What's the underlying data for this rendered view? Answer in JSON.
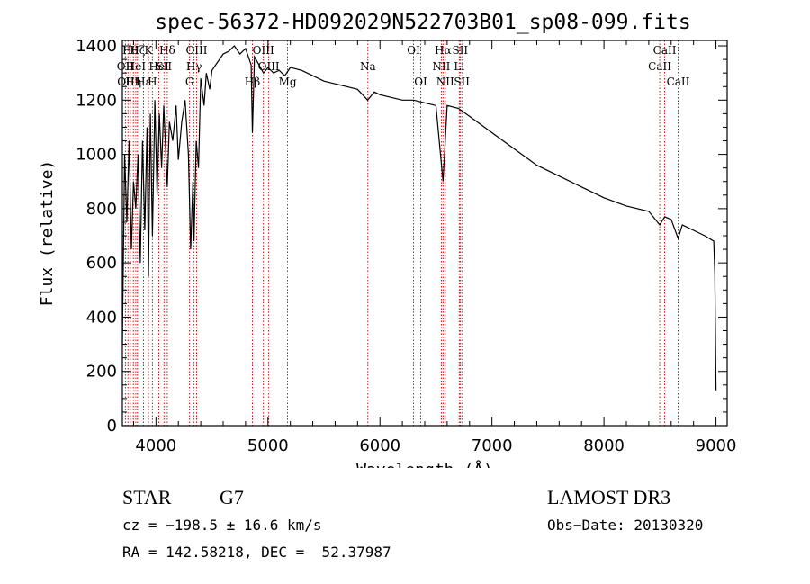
{
  "chart_data": {
    "type": "line",
    "title": "spec-56372-HD092029N522703B01_sp08-099.fits",
    "xlabel": "Wavelength (Å)",
    "ylabel": "Flux (relative)",
    "xlim": [
      3700,
      9100
    ],
    "ylim": [
      0,
      1420
    ],
    "xticks": [
      4000,
      5000,
      6000,
      7000,
      8000,
      9000
    ],
    "yticks": [
      0,
      200,
      400,
      600,
      800,
      1000,
      1200,
      1400
    ],
    "series": [
      {
        "name": "flux",
        "x": [
          3700,
          3720,
          3740,
          3760,
          3780,
          3800,
          3820,
          3840,
          3860,
          3880,
          3900,
          3920,
          3933,
          3950,
          3968,
          3990,
          4010,
          4030,
          4050,
          4070,
          4101,
          4120,
          4150,
          4180,
          4200,
          4230,
          4260,
          4290,
          4310,
          4330,
          4340,
          4360,
          4380,
          4400,
          4430,
          4450,
          4480,
          4500,
          4550,
          4600,
          4650,
          4700,
          4750,
          4800,
          4850,
          4861,
          4880,
          4920,
          4960,
          5000,
          5050,
          5100,
          5150,
          5200,
          5300,
          5400,
          5500,
          5600,
          5700,
          5800,
          5890,
          5950,
          6000,
          6100,
          6200,
          6300,
          6400,
          6500,
          6563,
          6600,
          6700,
          6800,
          6900,
          7000,
          7200,
          7400,
          7600,
          7800,
          8000,
          8200,
          8400,
          8498,
          8542,
          8600,
          8662,
          8700,
          8800,
          8900,
          8980,
          8990,
          9000
        ],
        "y": [
          300,
          1000,
          750,
          1050,
          650,
          900,
          800,
          1000,
          600,
          1050,
          720,
          1100,
          550,
          1150,
          700,
          1200,
          850,
          1150,
          950,
          1180,
          880,
          1120,
          1050,
          1180,
          980,
          1120,
          1200,
          1000,
          650,
          900,
          680,
          1050,
          950,
          1280,
          1180,
          1300,
          1240,
          1310,
          1340,
          1370,
          1380,
          1400,
          1370,
          1390,
          1330,
          1080,
          1360,
          1330,
          1300,
          1320,
          1300,
          1310,
          1290,
          1320,
          1310,
          1290,
          1270,
          1260,
          1250,
          1240,
          1200,
          1230,
          1220,
          1210,
          1200,
          1200,
          1190,
          1180,
          900,
          1180,
          1170,
          1140,
          1110,
          1080,
          1020,
          960,
          920,
          880,
          840,
          810,
          790,
          740,
          770,
          760,
          690,
          740,
          720,
          700,
          680,
          560,
          130
        ]
      }
    ],
    "lines": [
      {
        "w": 3727,
        "labels": [
          "OII"
        ],
        "row": 1
      },
      {
        "w": 3750,
        "labels": [
          "OIII"
        ],
        "row": 2
      },
      {
        "w": 3771,
        "labels": [
          "Hθ"
        ],
        "row": 0
      },
      {
        "w": 3798,
        "labels": [
          "Hη"
        ],
        "row": 2
      },
      {
        "w": 3820,
        "labels": [
          "HeI"
        ],
        "row": 1
      },
      {
        "w": 3835,
        "labels": [
          "Hζ"
        ],
        "row": 0
      },
      {
        "w": 3889,
        "labels": [
          "Hε"
        ],
        "row": 2
      },
      {
        "w": 3933,
        "labels": [
          "K"
        ],
        "row": 0
      },
      {
        "w": 3968,
        "labels": [
          "H"
        ],
        "row": 2
      },
      {
        "w": 4026,
        "labels": [
          "HeI"
        ],
        "row": 1
      },
      {
        "w": 4072,
        "labels": [
          "SII"
        ],
        "row": 1
      },
      {
        "w": 4101,
        "labels": [
          "Hδ"
        ],
        "row": 0
      },
      {
        "w": 4300,
        "labels": [
          "G"
        ],
        "row": 2
      },
      {
        "w": 4340,
        "labels": [
          "Hγ"
        ],
        "row": 1
      },
      {
        "w": 4363,
        "labels": [
          "OIII"
        ],
        "row": 0
      },
      {
        "w": 4861,
        "labels": [
          "Hβ"
        ],
        "row": 2
      },
      {
        "w": 4959,
        "labels": [
          "OIII"
        ],
        "row": 0
      },
      {
        "w": 5007,
        "labels": [
          "OIII"
        ],
        "row": 1
      },
      {
        "w": 5175,
        "labels": [
          "Mg"
        ],
        "row": 2
      },
      {
        "w": 5892,
        "labels": [
          "Na"
        ],
        "row": 1
      },
      {
        "w": 6300,
        "labels": [
          "OI"
        ],
        "row": 0
      },
      {
        "w": 6364,
        "labels": [
          "OI"
        ],
        "row": 2
      },
      {
        "w": 6548,
        "labels": [
          "NII"
        ],
        "row": 1
      },
      {
        "w": 6563,
        "labels": [
          "Hα"
        ],
        "row": 0
      },
      {
        "w": 6583,
        "labels": [
          "NII"
        ],
        "row": 2
      },
      {
        "w": 6708,
        "labels": [
          "Li"
        ],
        "row": 1
      },
      {
        "w": 6716,
        "labels": [
          "SII"
        ],
        "row": 0
      },
      {
        "w": 6731,
        "labels": [
          "SII"
        ],
        "row": 2
      },
      {
        "w": 8498,
        "labels": [
          "CaII"
        ],
        "row": 1
      },
      {
        "w": 8542,
        "labels": [
          "CaII"
        ],
        "row": 0
      },
      {
        "w": 8662,
        "labels": [
          "CaII"
        ],
        "row": 2
      }
    ]
  },
  "info": {
    "class": "STAR",
    "subclass": "G7",
    "survey": "LAMOST DR3",
    "cz": "cz = −198.5 ± 16.6 km/s",
    "obs_date": "Obs−Date: 20130320",
    "radec": "RA = 142.58218, DEC =  52.37987"
  },
  "colors": {
    "line_marker": "#c00000",
    "spectrum": "#000000"
  }
}
